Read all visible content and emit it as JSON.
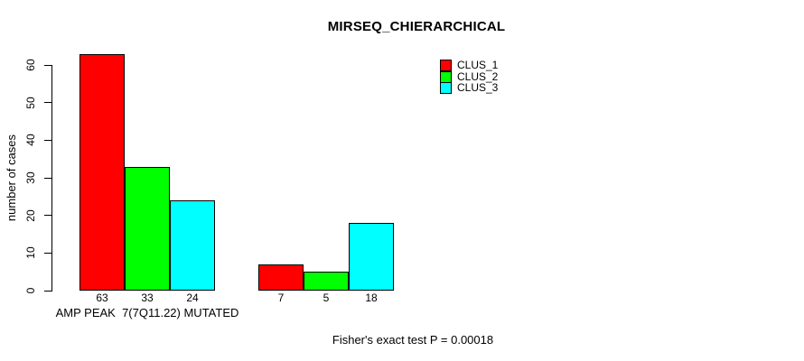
{
  "chart_data": {
    "type": "bar",
    "title": "MIRSEQ_CHIERARCHICAL",
    "ylabel": "number of cases",
    "xlabel": "",
    "ylim": [
      0,
      60
    ],
    "yticks": [
      0,
      10,
      20,
      30,
      40,
      50,
      60
    ],
    "grid": false,
    "legend_position": "top-right",
    "categories": [
      "AMP PEAK  7(7Q11.22) MUTATED",
      ""
    ],
    "series": [
      {
        "name": "CLUS_1",
        "color": "#ff0000",
        "values": [
          63,
          7
        ]
      },
      {
        "name": "CLUS_2",
        "color": "#00ff00",
        "values": [
          33,
          5
        ]
      },
      {
        "name": "CLUS_3",
        "color": "#00ffff",
        "values": [
          24,
          18
        ]
      }
    ],
    "bar_value_labels": [
      [
        63,
        33,
        24
      ],
      [
        7,
        5,
        18
      ]
    ],
    "annotation": "Fisher's exact test P = 0.00018"
  }
}
